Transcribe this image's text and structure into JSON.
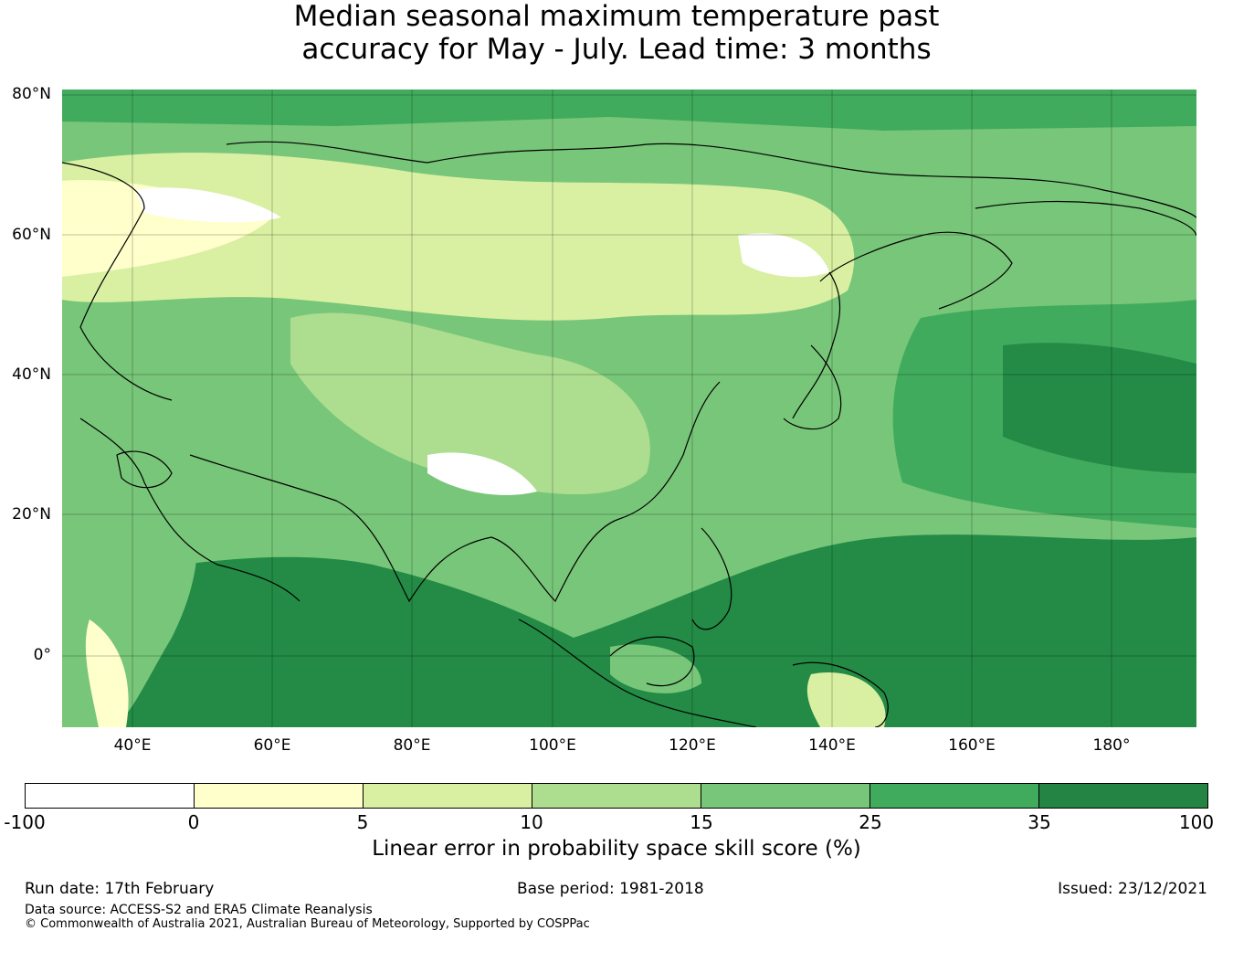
{
  "title": {
    "line1": "Median seasonal maximum temperature past",
    "line2": "accuracy for May - July. Lead time: 3 months"
  },
  "map": {
    "lat_ticks": [
      "80°N",
      "60°N",
      "40°N",
      "20°N",
      "0°"
    ],
    "lon_ticks": [
      "40°E",
      "60°E",
      "80°E",
      "100°E",
      "120°E",
      "140°E",
      "160°E",
      "180°"
    ],
    "ocean_color": "#238b45",
    "land_icon": "continent-outline"
  },
  "colorbar": {
    "ticks": [
      "-100",
      "0",
      "5",
      "10",
      "15",
      "25",
      "35",
      "100"
    ],
    "colors": [
      "#ffffff",
      "#ffffcc",
      "#d9f0a3",
      "#addd8e",
      "#78c679",
      "#41ab5d",
      "#238443"
    ],
    "label": "Linear error in probability space skill score (%)"
  },
  "footer": {
    "run_date": "Run date: 17th February",
    "base_period": "Base period: 1981-2018",
    "issued": "Issued: 23/12/2021",
    "data_source": "Data source: ACCESS-S2 and ERA5 Climate Reanalysis",
    "copyright": "© Commonwealth of Australia 2021, Australian Bureau of Meteorology, Supported by COSPPac"
  }
}
